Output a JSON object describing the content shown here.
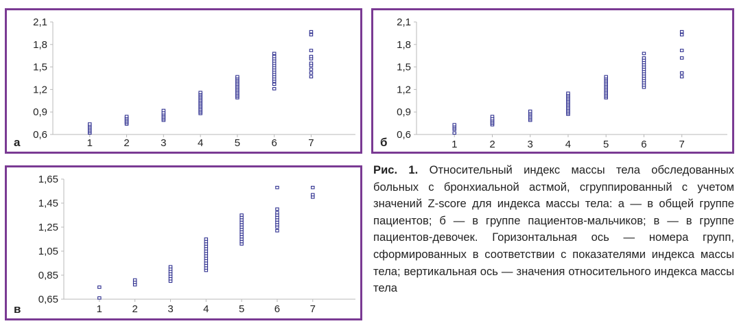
{
  "chart_data": [
    {
      "type": "scatter",
      "panel_label": "а",
      "x_ticks": [
        "1",
        "2",
        "3",
        "4",
        "5",
        "6",
        "7"
      ],
      "y_ticks": [
        "0,6",
        "0,9",
        "1,2",
        "1,5",
        "1,8",
        "2,1"
      ],
      "ylim": [
        0.6,
        2.1
      ],
      "xlim": [
        0,
        8.2
      ],
      "series": [
        {
          "x": 1,
          "values": [
            0.62,
            0.64,
            0.66,
            0.68,
            0.7,
            0.72,
            0.74
          ]
        },
        {
          "x": 2,
          "values": [
            0.74,
            0.76,
            0.78,
            0.8,
            0.82,
            0.84
          ]
        },
        {
          "x": 3,
          "values": [
            0.79,
            0.81,
            0.83,
            0.85,
            0.87,
            0.89,
            0.92
          ]
        },
        {
          "x": 4,
          "values": [
            0.88,
            0.9,
            0.92,
            0.94,
            0.96,
            0.98,
            1.0,
            1.02,
            1.04,
            1.06,
            1.08,
            1.1,
            1.12,
            1.14,
            1.16
          ]
        },
        {
          "x": 5,
          "values": [
            1.09,
            1.11,
            1.13,
            1.15,
            1.17,
            1.19,
            1.21,
            1.23,
            1.25,
            1.27,
            1.29,
            1.31,
            1.33,
            1.35,
            1.37
          ]
        },
        {
          "x": 6,
          "values": [
            1.21,
            1.27,
            1.31,
            1.34,
            1.37,
            1.4,
            1.43,
            1.46,
            1.49,
            1.52,
            1.55,
            1.58,
            1.61,
            1.64,
            1.68
          ]
        },
        {
          "x": 7,
          "values": [
            1.37,
            1.42,
            1.47,
            1.52,
            1.55,
            1.61,
            1.64,
            1.72,
            1.93,
            1.97
          ]
        }
      ]
    },
    {
      "type": "scatter",
      "panel_label": "б",
      "x_ticks": [
        "1",
        "2",
        "3",
        "4",
        "5",
        "6",
        "7"
      ],
      "y_ticks": [
        "0,6",
        "0,9",
        "1,2",
        "1,5",
        "1,8",
        "2,1"
      ],
      "ylim": [
        0.6,
        2.1
      ],
      "xlim": [
        0,
        8.2
      ],
      "series": [
        {
          "x": 1,
          "values": [
            0.62,
            0.67,
            0.69,
            0.71,
            0.73
          ]
        },
        {
          "x": 2,
          "values": [
            0.73,
            0.75,
            0.77,
            0.79,
            0.81,
            0.84
          ]
        },
        {
          "x": 3,
          "values": [
            0.79,
            0.81,
            0.83,
            0.85,
            0.87,
            0.89,
            0.91
          ]
        },
        {
          "x": 4,
          "values": [
            0.87,
            0.89,
            0.91,
            0.93,
            0.95,
            0.97,
            0.99,
            1.01,
            1.03,
            1.05,
            1.07,
            1.09,
            1.11,
            1.13,
            1.15
          ]
        },
        {
          "x": 5,
          "values": [
            1.09,
            1.11,
            1.13,
            1.15,
            1.17,
            1.19,
            1.21,
            1.23,
            1.25,
            1.27,
            1.29,
            1.31,
            1.33,
            1.35,
            1.37
          ]
        },
        {
          "x": 6,
          "values": [
            1.23,
            1.26,
            1.29,
            1.32,
            1.35,
            1.38,
            1.41,
            1.44,
            1.47,
            1.5,
            1.53,
            1.56,
            1.59,
            1.62,
            1.68
          ]
        },
        {
          "x": 7,
          "values": [
            1.37,
            1.42,
            1.62,
            1.72,
            1.93,
            1.97
          ]
        }
      ]
    },
    {
      "type": "scatter",
      "panel_label": "в",
      "x_ticks": [
        "1",
        "2",
        "3",
        "4",
        "5",
        "6",
        "7"
      ],
      "y_ticks": [
        "0,65",
        "0,85",
        "1,05",
        "1,25",
        "1,45",
        "1,65"
      ],
      "ylim": [
        0.65,
        1.65
      ],
      "xlim": [
        0,
        8.2
      ],
      "series": [
        {
          "x": 1,
          "values": [
            0.66,
            0.75
          ]
        },
        {
          "x": 2,
          "values": [
            0.77,
            0.79,
            0.81
          ]
        },
        {
          "x": 3,
          "values": [
            0.8,
            0.82,
            0.84,
            0.86,
            0.88,
            0.9,
            0.92
          ]
        },
        {
          "x": 4,
          "values": [
            0.89,
            0.91,
            0.93,
            0.95,
            0.97,
            0.99,
            1.01,
            1.03,
            1.05,
            1.07,
            1.09,
            1.11,
            1.13,
            1.15
          ]
        },
        {
          "x": 5,
          "values": [
            1.11,
            1.13,
            1.15,
            1.17,
            1.19,
            1.21,
            1.23,
            1.25,
            1.27,
            1.29,
            1.31,
            1.33,
            1.35
          ]
        },
        {
          "x": 6,
          "values": [
            1.22,
            1.25,
            1.27,
            1.29,
            1.31,
            1.33,
            1.35,
            1.37,
            1.4,
            1.58
          ]
        },
        {
          "x": 7,
          "values": [
            1.5,
            1.52,
            1.58
          ]
        }
      ]
    }
  ],
  "caption": {
    "fig_label": "Рис. 1.",
    "text": "Относительный индекс массы тела обследованных больных с бронхиальной астмой, сгруппированный с учетом значений Z-score для индекса массы тела: а — в общей группе пациентов; б — в группе пациентов-мальчиков; в — в группе пациентов-девочек. Горизонтальная ось — номера групп, сформированных в соответствии с показателями индекса массы тела; вертикальная ось — значения относительного индекса массы тела"
  },
  "colors": {
    "frame": "#7a3a93",
    "marker": "#2e2f8f",
    "axis": "#b8b8b8"
  }
}
